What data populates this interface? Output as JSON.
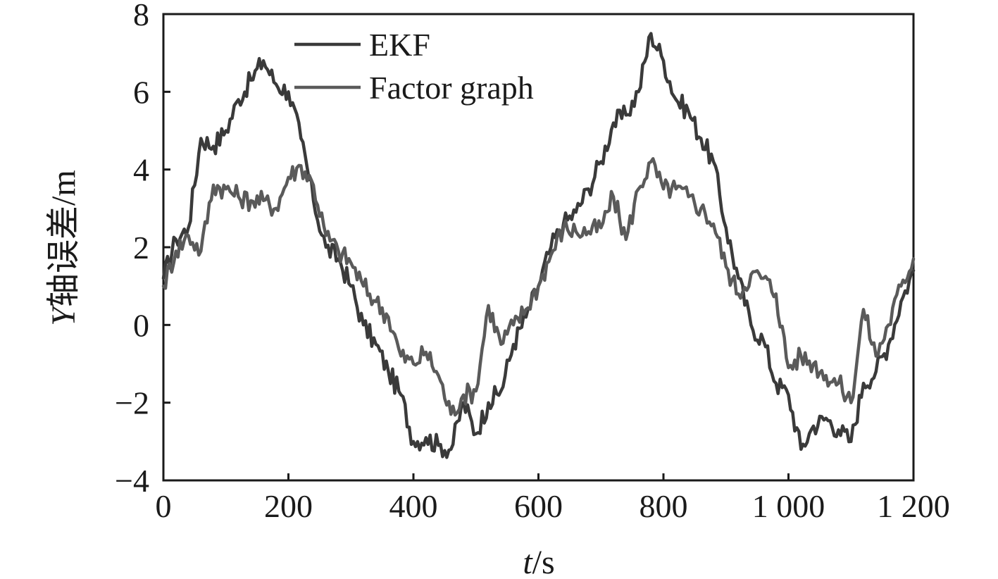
{
  "chart_data": {
    "type": "line",
    "title": "",
    "xlabel": {
      "italic": "t",
      "rest": "/s"
    },
    "ylabel": {
      "italic": "Y",
      "rest": "轴误差/m"
    },
    "xlim": [
      0,
      1200
    ],
    "ylim": [
      -4,
      8
    ],
    "x_ticks": [
      0,
      200,
      400,
      600,
      800,
      1000,
      1200
    ],
    "x_tick_labels": [
      "0",
      "200",
      "400",
      "600",
      "800",
      "1 000",
      "1 200"
    ],
    "y_ticks": [
      -4,
      -2,
      0,
      2,
      4,
      6,
      8
    ],
    "y_tick_labels": [
      "−4",
      "−2",
      "0",
      "2",
      "4",
      "6",
      "8"
    ],
    "grid": false,
    "legend_position": "top-center",
    "x": [
      0,
      20,
      40,
      60,
      80,
      100,
      120,
      140,
      160,
      180,
      200,
      220,
      240,
      260,
      280,
      300,
      320,
      340,
      360,
      380,
      400,
      420,
      440,
      460,
      480,
      500,
      520,
      540,
      560,
      580,
      600,
      620,
      640,
      660,
      680,
      700,
      720,
      740,
      760,
      780,
      800,
      820,
      840,
      860,
      880,
      900,
      920,
      940,
      960,
      980,
      1000,
      1020,
      1040,
      1060,
      1080,
      1100,
      1120,
      1140,
      1160,
      1180,
      1200
    ],
    "series": [
      {
        "name": "EKF",
        "color": "#3a3a3a",
        "values": [
          1.2,
          2.2,
          2.5,
          4.8,
          4.6,
          5.0,
          5.8,
          6.3,
          6.8,
          6.2,
          6.0,
          4.8,
          3.2,
          2.0,
          1.7,
          1.0,
          0.0,
          -0.5,
          -1.2,
          -1.8,
          -3.0,
          -2.9,
          -3.1,
          -3.2,
          -2.0,
          -2.8,
          -2.0,
          -1.7,
          -0.5,
          0.2,
          1.0,
          2.0,
          2.6,
          2.9,
          3.5,
          4.2,
          5.2,
          5.4,
          6.0,
          7.5,
          6.8,
          5.8,
          5.5,
          4.8,
          4.2,
          2.5,
          1.2,
          0.0,
          -0.4,
          -1.5,
          -1.8,
          -3.2,
          -2.6,
          -2.4,
          -2.7,
          -3.0,
          -1.5,
          -1.2,
          -0.5,
          0.6,
          1.4
        ]
      },
      {
        "name": "Factor graph",
        "color": "#5a5a5a",
        "values": [
          1.0,
          1.9,
          2.3,
          1.9,
          3.6,
          3.5,
          3.3,
          3.2,
          3.2,
          3.0,
          3.8,
          4.1,
          3.6,
          2.3,
          1.9,
          1.6,
          1.0,
          0.6,
          0.2,
          -0.8,
          -1.0,
          -0.7,
          -1.3,
          -2.3,
          -1.8,
          -1.7,
          0.5,
          -0.5,
          0.0,
          0.4,
          1.0,
          1.8,
          2.5,
          2.4,
          2.4,
          2.5,
          3.3,
          2.2,
          3.5,
          4.2,
          3.5,
          3.5,
          3.3,
          3.0,
          2.6,
          1.5,
          0.8,
          1.3,
          1.2,
          0.8,
          -1.1,
          -0.8,
          -1.0,
          -1.3,
          -1.5,
          -2.0,
          0.4,
          -0.8,
          0.0,
          1.0,
          1.7
        ]
      }
    ]
  }
}
